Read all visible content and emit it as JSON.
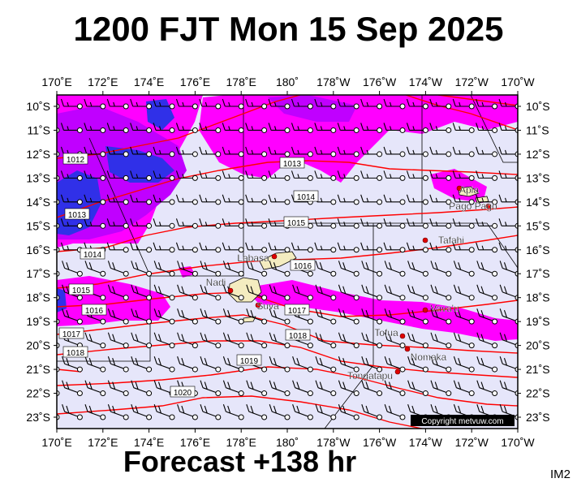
{
  "title": "1200 FJT Mon 15 Sep 2025",
  "footer": "Forecast +138 hr",
  "corner_label": "IM2",
  "copyright": "Copyright metvuw.com",
  "colors": {
    "background": "#e6e6fa",
    "precip_light": "#ff00ff",
    "precip_mid": "#c000ff",
    "precip_heavy": "#3030e8",
    "isobar": "#ff0000",
    "land": "#f4ecc0"
  },
  "axes": {
    "lon_labels": [
      "170˚E",
      "172˚E",
      "174˚E",
      "176˚E",
      "178˚E",
      "180˚",
      "178˚W",
      "176˚W",
      "174˚W",
      "172˚W",
      "170˚W"
    ],
    "lat_labels": [
      "10˚S",
      "11˚S",
      "12˚S",
      "13˚S",
      "14˚S",
      "15˚S",
      "16˚S",
      "17˚S",
      "18˚S",
      "19˚S",
      "20˚S",
      "21˚S",
      "22˚S",
      "23˚S"
    ]
  },
  "isobars": [
    {
      "label": "1012"
    },
    {
      "label": "1013"
    },
    {
      "label": "1013"
    },
    {
      "label": "1014"
    },
    {
      "label": "1014"
    },
    {
      "label": "1015"
    },
    {
      "label": "1015"
    },
    {
      "label": "1016"
    },
    {
      "label": "1016"
    },
    {
      "label": "1017"
    },
    {
      "label": "1017"
    },
    {
      "label": "1018"
    },
    {
      "label": "1018"
    },
    {
      "label": "1019"
    },
    {
      "label": "1020"
    }
  ],
  "places": [
    {
      "name": "Apia"
    },
    {
      "name": "Pago Pago"
    },
    {
      "name": "Tafahi"
    },
    {
      "name": "Labasa"
    },
    {
      "name": "Nadi"
    },
    {
      "name": "Suva"
    },
    {
      "name": "Vava'u"
    },
    {
      "name": "Tofua"
    },
    {
      "name": "Nomaka"
    },
    {
      "name": "Tongatapu"
    }
  ]
}
